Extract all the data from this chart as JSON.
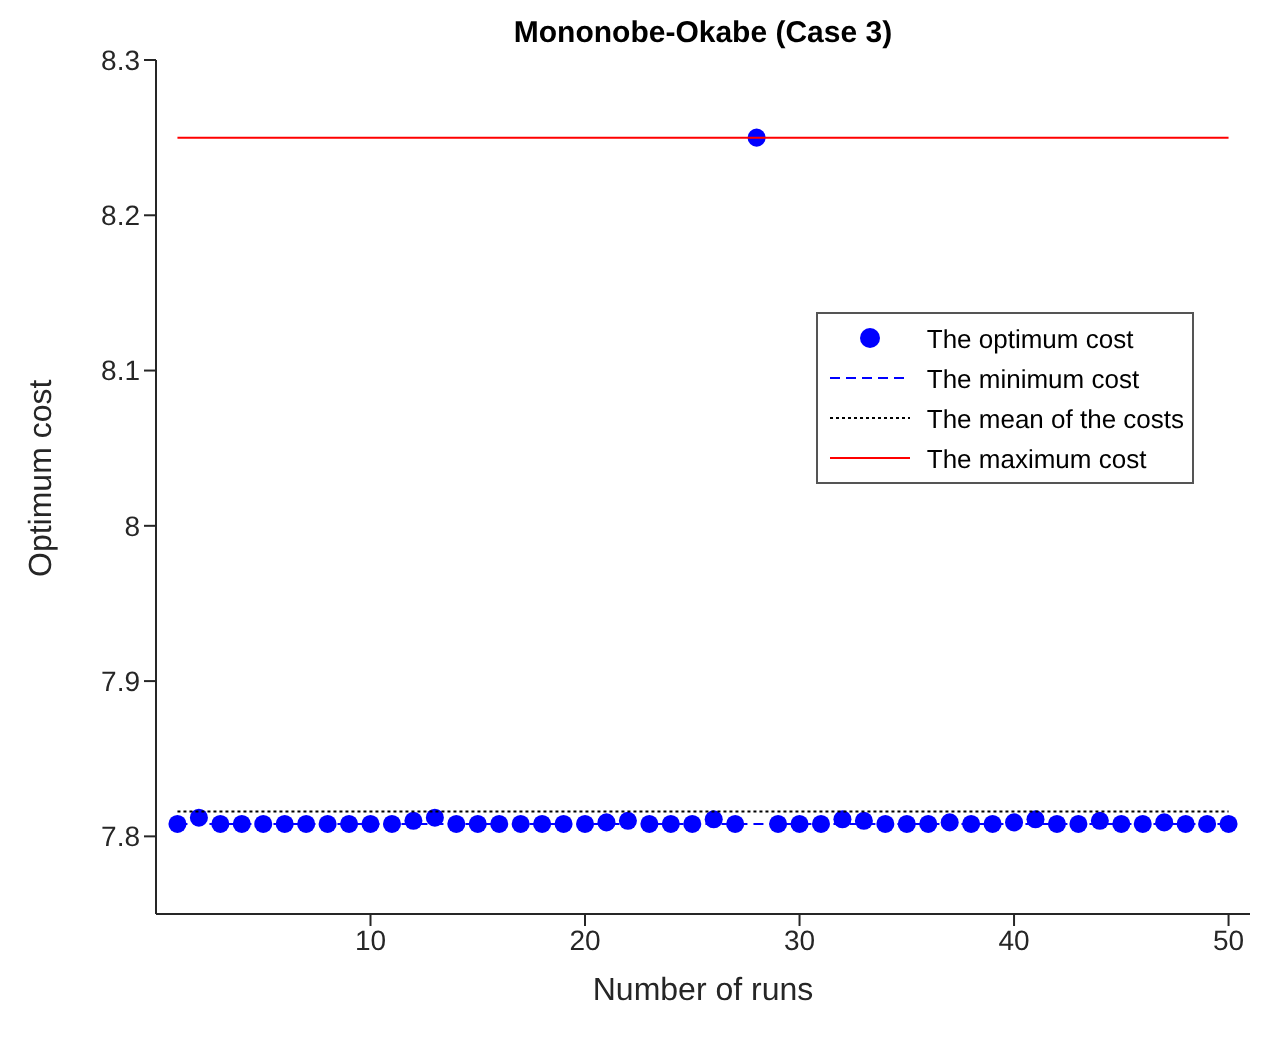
{
  "chart_data": {
    "type": "scatter",
    "title": "Mononobe-Okabe (Case 3)",
    "xlabel": "Number of runs",
    "ylabel": "Optimum cost",
    "x": [
      1,
      2,
      3,
      4,
      5,
      6,
      7,
      8,
      9,
      10,
      11,
      12,
      13,
      14,
      15,
      16,
      17,
      18,
      19,
      20,
      21,
      22,
      23,
      24,
      25,
      26,
      27,
      28,
      29,
      30,
      31,
      32,
      33,
      34,
      35,
      36,
      37,
      38,
      39,
      40,
      41,
      42,
      43,
      44,
      45,
      46,
      47,
      48,
      49,
      50
    ],
    "series": [
      {
        "name": "The optimum cost",
        "type": "scatter",
        "color": "#0000ff",
        "marker": "circle",
        "values": [
          7.808,
          7.812,
          7.808,
          7.808,
          7.808,
          7.808,
          7.808,
          7.808,
          7.808,
          7.808,
          7.808,
          7.81,
          7.812,
          7.808,
          7.808,
          7.808,
          7.808,
          7.808,
          7.808,
          7.808,
          7.809,
          7.81,
          7.808,
          7.808,
          7.808,
          7.811,
          7.808,
          8.25,
          7.808,
          7.808,
          7.808,
          7.811,
          7.81,
          7.808,
          7.808,
          7.808,
          7.809,
          7.808,
          7.808,
          7.809,
          7.811,
          7.808,
          7.808,
          7.81,
          7.808,
          7.808,
          7.809,
          7.808,
          7.808,
          7.808
        ]
      },
      {
        "name": "The minimum cost",
        "type": "line",
        "color": "#0000ff",
        "line_style": "dashed",
        "marker": "none",
        "values": [
          7.808,
          7.808,
          7.808,
          7.808,
          7.808,
          7.808,
          7.808,
          7.808,
          7.808,
          7.808,
          7.808,
          7.808,
          7.808,
          7.808,
          7.808,
          7.808,
          7.808,
          7.808,
          7.808,
          7.808,
          7.808,
          7.808,
          7.808,
          7.808,
          7.808,
          7.808,
          7.808,
          7.808,
          7.808,
          7.808,
          7.808,
          7.808,
          7.808,
          7.808,
          7.808,
          7.808,
          7.808,
          7.808,
          7.808,
          7.808,
          7.808,
          7.808,
          7.808,
          7.808,
          7.808,
          7.808,
          7.808,
          7.808,
          7.808,
          7.808
        ]
      },
      {
        "name": "The mean of the costs",
        "type": "line",
        "color": "#000000",
        "line_style": "dotted",
        "marker": "none",
        "values": [
          7.816,
          7.816,
          7.816,
          7.816,
          7.816,
          7.816,
          7.816,
          7.816,
          7.816,
          7.816,
          7.816,
          7.816,
          7.816,
          7.816,
          7.816,
          7.816,
          7.816,
          7.816,
          7.816,
          7.816,
          7.816,
          7.816,
          7.816,
          7.816,
          7.816,
          7.816,
          7.816,
          7.816,
          7.816,
          7.816,
          7.816,
          7.816,
          7.816,
          7.816,
          7.816,
          7.816,
          7.816,
          7.816,
          7.816,
          7.816,
          7.816,
          7.816,
          7.816,
          7.816,
          7.816,
          7.816,
          7.816,
          7.816,
          7.816,
          7.816
        ]
      },
      {
        "name": "The maximum cost",
        "type": "line",
        "color": "#ff0000",
        "line_style": "solid",
        "marker": "none",
        "values": [
          8.25,
          8.25,
          8.25,
          8.25,
          8.25,
          8.25,
          8.25,
          8.25,
          8.25,
          8.25,
          8.25,
          8.25,
          8.25,
          8.25,
          8.25,
          8.25,
          8.25,
          8.25,
          8.25,
          8.25,
          8.25,
          8.25,
          8.25,
          8.25,
          8.25,
          8.25,
          8.25,
          8.25,
          8.25,
          8.25,
          8.25,
          8.25,
          8.25,
          8.25,
          8.25,
          8.25,
          8.25,
          8.25,
          8.25,
          8.25,
          8.25,
          8.25,
          8.25,
          8.25,
          8.25,
          8.25,
          8.25,
          8.25,
          8.25,
          8.25
        ]
      }
    ],
    "xlim": [
      0,
      51
    ],
    "xticks": [
      10,
      20,
      30,
      40,
      50
    ],
    "ylim": [
      7.75,
      8.3
    ],
    "yticks": [
      7.8,
      7.9,
      8,
      8.1,
      8.2,
      8.3
    ],
    "grid": false,
    "legend": "top right"
  }
}
